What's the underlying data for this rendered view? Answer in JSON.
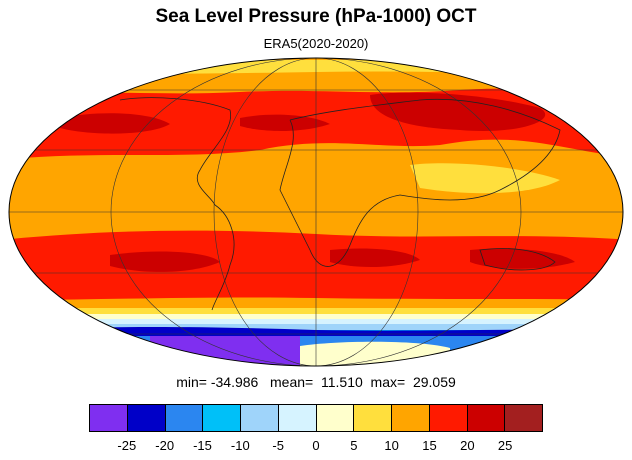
{
  "title": "Sea Level Pressure (hPa-1000) OCT",
  "subtitle": "ERA5(2020-2020)",
  "stats": {
    "min_label": "min=",
    "min": "-34.986",
    "mean_label": "mean=",
    "mean": "11.510",
    "max_label": "max=",
    "max": "29.059"
  },
  "projection": "Mollweide",
  "colorbar": {
    "colors": [
      "#7f2ff0",
      "#0000c8",
      "#2b86f0",
      "#00c0f8",
      "#9fd4fa",
      "#d6f3ff",
      "#ffffcc",
      "#ffdf3d",
      "#ffa500",
      "#ff1a00",
      "#cc0000",
      "#a31f1f"
    ],
    "labels": [
      "-25",
      "-20",
      "-15",
      "-10",
      "-5",
      "0",
      "5",
      "10",
      "15",
      "20",
      "25"
    ]
  },
  "colors": {
    "ocean_base": "#ffa500",
    "high_belt": "#ff1a00",
    "deep_high": "#cc0000",
    "polar_low": "#2b86f0"
  }
}
